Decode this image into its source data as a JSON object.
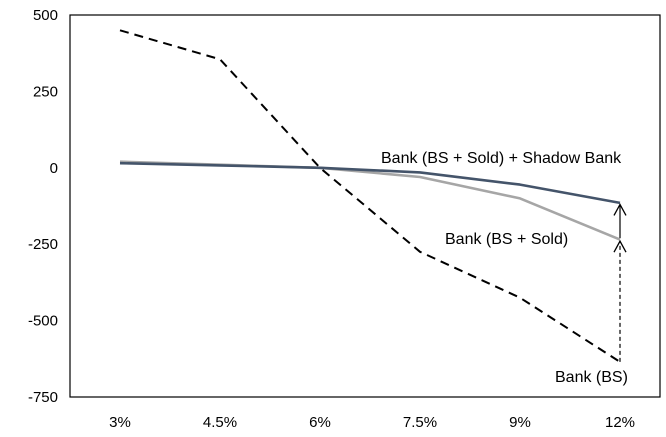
{
  "chart_data": {
    "type": "line",
    "title": "",
    "xlabel": "",
    "ylabel": "",
    "categories": [
      "3%",
      "4.5%",
      "6%",
      "7.5%",
      "9%",
      "12%"
    ],
    "ylim": [
      -750,
      500
    ],
    "yticks": [
      500,
      250,
      0,
      -250,
      -500,
      -750
    ],
    "grid": false,
    "legend": "none",
    "series": [
      {
        "name": "Bank (BS)",
        "values": [
          450,
          355,
          0,
          -275,
          -425,
          -635
        ],
        "color": "#000000",
        "dash": "dashed"
      },
      {
        "name": "Bank (BS + Sold)",
        "values": [
          20,
          10,
          0,
          -30,
          -100,
          -235
        ],
        "color": "#a6a6a6",
        "dash": "solid"
      },
      {
        "name": "Bank (BS + Sold) + Shadow Bank",
        "values": [
          15,
          8,
          0,
          -15,
          -55,
          -115
        ],
        "color": "#44546a",
        "dash": "solid"
      }
    ],
    "annotations": [
      {
        "type": "arrow",
        "category": "12%",
        "from": -635,
        "to": -240,
        "style": "dashed"
      },
      {
        "type": "arrow",
        "category": "12%",
        "from": -230,
        "to": -120,
        "style": "solid"
      }
    ]
  }
}
